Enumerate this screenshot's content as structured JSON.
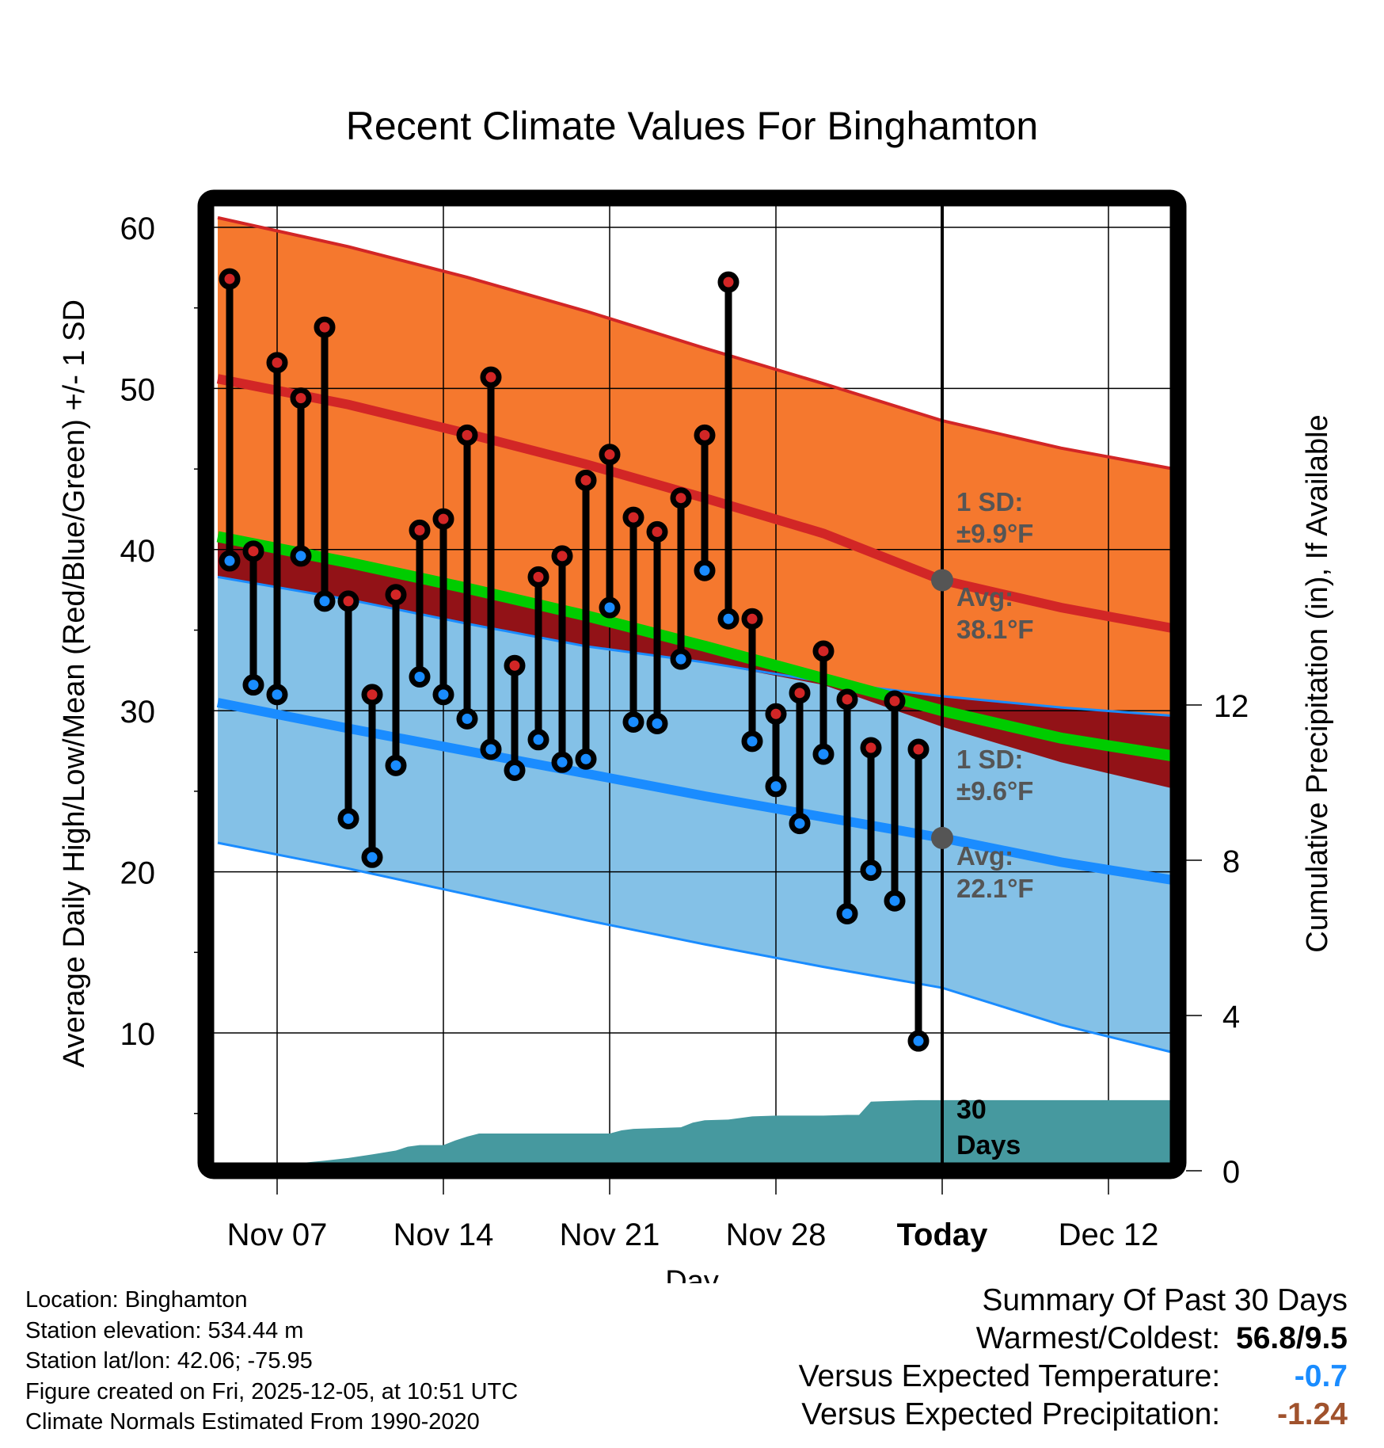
{
  "chart_data": {
    "type": "line",
    "title": "Recent Climate Values For Binghamton",
    "xlabel": "Day",
    "ylabel": "Average Daily High/Low/Mean (Red/Blue/Green) +/- 1 SD",
    "y2label": "Cumulative Precipitation (in), If Available",
    "ylim": [
      2,
      61.3
    ],
    "y2lim": [
      0,
      17
    ],
    "yticks": [
      10,
      20,
      30,
      40,
      50,
      60
    ],
    "y2ticks": [
      0,
      4,
      8,
      12
    ],
    "grid": true,
    "x_range_days_from_nov5": [
      -0.5,
      40.5
    ],
    "xticks": [
      {
        "label": "Nov 07",
        "day": 2
      },
      {
        "label": "Nov 14",
        "day": 9
      },
      {
        "label": "Nov 21",
        "day": 16
      },
      {
        "label": "Nov 28",
        "day": 23
      },
      {
        "label": "Today",
        "day": 30
      },
      {
        "label": "Dec 12",
        "day": 37
      }
    ],
    "today_day": 30,
    "observed": {
      "dates": [
        "Nov 05",
        "Nov 06",
        "Nov 07",
        "Nov 08",
        "Nov 09",
        "Nov 10",
        "Nov 11",
        "Nov 12",
        "Nov 13",
        "Nov 14",
        "Nov 15",
        "Nov 16",
        "Nov 17",
        "Nov 18",
        "Nov 19",
        "Nov 20",
        "Nov 21",
        "Nov 22",
        "Nov 23",
        "Nov 24",
        "Nov 25",
        "Nov 26",
        "Nov 27",
        "Nov 28",
        "Nov 29",
        "Nov 30",
        "Dec 01",
        "Dec 02",
        "Dec 03",
        "Dec 04"
      ],
      "highs": [
        56.8,
        39.9,
        51.6,
        49.4,
        53.8,
        36.8,
        31.0,
        37.2,
        41.2,
        41.9,
        47.1,
        50.7,
        32.8,
        38.3,
        39.6,
        44.3,
        45.9,
        42.0,
        41.1,
        43.2,
        47.1,
        56.6,
        35.7,
        29.8,
        31.1,
        33.7,
        30.7,
        27.7,
        30.6,
        27.6
      ],
      "lows": [
        39.3,
        31.6,
        31.0,
        39.6,
        36.8,
        23.3,
        20.9,
        26.6,
        32.1,
        31.0,
        29.5,
        27.6,
        26.3,
        28.2,
        26.8,
        27.0,
        36.4,
        29.3,
        29.2,
        33.2,
        38.7,
        35.7,
        28.1,
        25.3,
        23.0,
        27.3,
        17.4,
        20.1,
        18.2,
        9.5
      ]
    },
    "normals": {
      "days": [
        -0.5,
        5,
        10,
        15,
        20,
        25,
        30,
        35,
        40.5
      ],
      "high_avg": [
        50.6,
        49.0,
        47.2,
        45.3,
        43.2,
        41.0,
        38.1,
        36.4,
        34.9
      ],
      "high_plus_sd": [
        60.6,
        58.8,
        56.9,
        54.8,
        52.5,
        50.3,
        48.0,
        46.3,
        44.8
      ],
      "high_minus_sd": [
        40.7,
        39.0,
        37.3,
        35.6,
        33.8,
        31.6,
        29.0,
        26.8,
        24.9
      ],
      "mean_avg": [
        40.8,
        39.2,
        37.6,
        35.9,
        34.0,
        32.0,
        30.0,
        28.3,
        27.0
      ],
      "low_avg": [
        30.5,
        28.9,
        27.5,
        26.1,
        24.7,
        23.4,
        22.1,
        20.6,
        19.3
      ],
      "low_plus_sd": [
        38.3,
        36.9,
        35.4,
        34.0,
        33.0,
        31.8,
        30.9,
        30.2,
        29.6
      ],
      "low_minus_sd": [
        21.8,
        20.2,
        18.6,
        17.0,
        15.5,
        14.1,
        12.8,
        10.5,
        8.5
      ]
    },
    "precip_cumulative": {
      "days": [
        -0.5,
        0.5,
        1,
        2,
        3,
        4,
        5,
        6,
        7,
        7.5,
        8,
        9,
        9.5,
        10,
        10.5,
        11,
        16,
        16.5,
        17,
        18,
        19,
        19.5,
        20,
        21,
        22,
        23,
        24,
        25,
        26,
        26.5,
        27,
        28,
        29,
        30,
        40.5
      ],
      "values": [
        0,
        0.0,
        0.05,
        0.12,
        0.2,
        0.26,
        0.33,
        0.42,
        0.52,
        0.62,
        0.66,
        0.66,
        0.78,
        0.88,
        0.96,
        0.96,
        0.96,
        1.04,
        1.08,
        1.1,
        1.12,
        1.24,
        1.3,
        1.32,
        1.4,
        1.42,
        1.42,
        1.42,
        1.44,
        1.44,
        1.78,
        1.8,
        1.82,
        1.82,
        1.82
      ]
    },
    "annotations": {
      "high_sd_line1": "1 SD:",
      "high_sd_line2": "±9.9°F",
      "high_avg_line1": "Avg:",
      "high_avg_line2": "38.1°F",
      "low_sd_line1": "1 SD:",
      "low_sd_line2": "±9.6°F",
      "low_avg_line1": "Avg:",
      "low_avg_line2": "22.1°F",
      "today_high_avg": 38.1,
      "today_low_avg": 22.1,
      "days_line1": "30",
      "days_line2": "Days"
    },
    "colors": {
      "high_band": "#f5782e",
      "high_line": "#d22626",
      "mean_line": "#00cc00",
      "mean_band_dark": "#921217",
      "low_band": "#84c1e7",
      "low_line": "#1a8cff",
      "precip": "#46999f",
      "high_dot": "#d22626",
      "low_dot": "#1a8cff",
      "marker_gray": "#555555"
    }
  },
  "meta": {
    "location": "Location: Binghamton",
    "elevation": "Station elevation: 534.44 m",
    "latlon": "Station lat/lon: 42.06; -75.95",
    "created": "Figure created on Fri, 2025-12-05, at 10:51 UTC",
    "normals": "Climate Normals Estimated From 1990-2020"
  },
  "summary": {
    "title": "Summary Of Past 30 Days",
    "warmest_coldest_label": "Warmest/Coldest:",
    "warmest_coldest_value": "56.8/9.5",
    "temp_label": "Versus Expected Temperature:",
    "temp_value": "-0.7",
    "temp_color": "#1a8cff",
    "precip_label": "Versus Expected Precipitation:",
    "precip_value": "-1.24",
    "precip_color": "#a0522d"
  }
}
